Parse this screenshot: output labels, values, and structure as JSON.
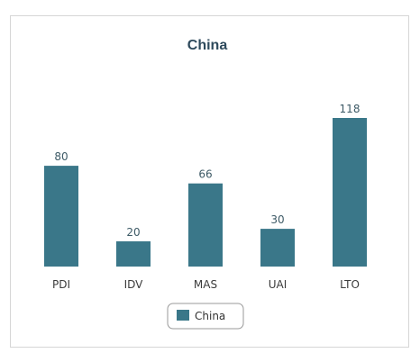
{
  "chart_data": {
    "type": "bar",
    "title": "China",
    "categories": [
      "PDI",
      "IDV",
      "MAS",
      "UAI",
      "LTO"
    ],
    "series": [
      {
        "name": "China",
        "values": [
          80,
          20,
          66,
          30,
          118
        ],
        "color": "#3a7789"
      }
    ],
    "ylim": [
      0,
      118
    ],
    "grid": false,
    "legend_position": "bottom-center",
    "data_labels": true
  }
}
